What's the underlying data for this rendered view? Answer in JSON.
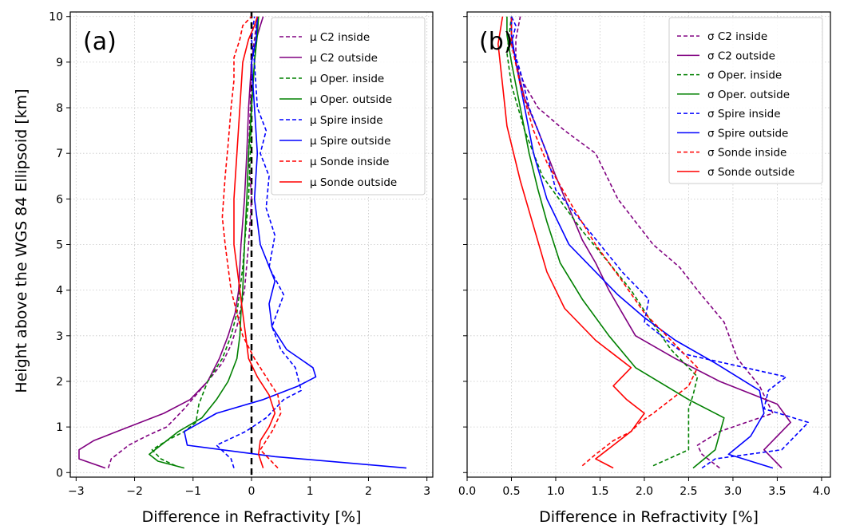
{
  "ylabel": "Height above the WGS 84 Ellipsoid  [km]",
  "legend_labels": {
    "a": [
      "μ C2 inside",
      "μ C2 outside",
      "μ Oper. inside",
      "μ Oper. outside",
      "μ Spire inside",
      "μ Spire outside",
      "μ Sonde inside",
      "μ Sonde outside"
    ],
    "b": [
      "σ C2 inside",
      "σ C2 outside",
      "σ Oper. inside",
      "σ Oper. outside",
      "σ Spire inside",
      "σ Spire outside",
      "σ Sonde inside",
      "σ Sonde outside"
    ]
  },
  "chart_data": [
    {
      "type": "line",
      "panel_label": "(a)",
      "xlabel": "Difference in Refractivity  [%]",
      "ylabel": "Height above the WGS 84 Ellipsoid  [km]",
      "xlim": [
        -3.1,
        3.1
      ],
      "ylim": [
        -0.1,
        10.1
      ],
      "xticks": [
        -3,
        -2,
        -1,
        0,
        1,
        2,
        3
      ],
      "xtick_labels": [
        "−3",
        "−2",
        "−1",
        "0",
        "1",
        "2",
        "3"
      ],
      "yticks": [
        0,
        1,
        2,
        3,
        4,
        5,
        6,
        7,
        8,
        9,
        10
      ],
      "grid": true,
      "legend_position": "top-right",
      "reference_line": {
        "x": 0,
        "style": "dashed",
        "color": "#000000"
      },
      "series": [
        {
          "name": "μ C2 inside",
          "color": "#800080",
          "style": "dashed",
          "x": [
            -2.45,
            -2.4,
            -2.1,
            -1.8,
            -1.45,
            -1.15,
            -0.95,
            -0.75,
            -0.5,
            -0.35,
            -0.25,
            -0.12,
            -0.05,
            0.0,
            -0.05,
            -0.02,
            0.0,
            0.05,
            0.1
          ],
          "y": [
            0.1,
            0.3,
            0.6,
            0.8,
            1.0,
            1.4,
            1.7,
            2.0,
            2.4,
            2.8,
            3.2,
            4.0,
            5.0,
            6.0,
            7.0,
            8.0,
            9.0,
            9.5,
            10.0
          ]
        },
        {
          "name": "μ C2 outside",
          "color": "#800080",
          "style": "solid",
          "x": [
            -2.5,
            -2.95,
            -2.95,
            -2.7,
            -2.3,
            -1.9,
            -1.5,
            -1.05,
            -0.75,
            -0.55,
            -0.4,
            -0.28,
            -0.22,
            -0.18,
            -0.12,
            -0.08,
            -0.05,
            0.0,
            0.08,
            0.15,
            0.2
          ],
          "y": [
            0.1,
            0.3,
            0.5,
            0.7,
            0.9,
            1.1,
            1.3,
            1.6,
            2.0,
            2.5,
            3.0,
            3.5,
            4.0,
            5.0,
            6.0,
            7.0,
            8.0,
            9.0,
            9.5,
            9.8,
            10.0
          ]
        },
        {
          "name": "μ Oper. inside",
          "color": "#008000",
          "style": "dashed",
          "x": [
            -1.3,
            -1.55,
            -1.7,
            -1.45,
            -1.15,
            -0.95,
            -0.9,
            -0.75,
            -0.5,
            -0.35,
            -0.25,
            -0.2,
            -0.15,
            -0.12,
            -0.05,
            -0.02,
            0.0,
            0.05,
            0.1
          ],
          "y": [
            0.15,
            0.3,
            0.5,
            0.7,
            0.9,
            1.1,
            1.5,
            2.0,
            2.5,
            3.0,
            3.5,
            4.0,
            4.5,
            5.0,
            6.0,
            7.0,
            8.0,
            9.0,
            10.0
          ]
        },
        {
          "name": "μ Oper. outside",
          "color": "#008000",
          "style": "solid",
          "x": [
            -1.15,
            -1.6,
            -1.75,
            -1.55,
            -1.25,
            -0.85,
            -0.6,
            -0.4,
            -0.25,
            -0.2,
            -0.18,
            -0.15,
            -0.12,
            -0.08,
            -0.05,
            0.0,
            0.05,
            0.1,
            0.12
          ],
          "y": [
            0.1,
            0.25,
            0.4,
            0.6,
            0.9,
            1.2,
            1.6,
            2.0,
            2.5,
            3.0,
            3.5,
            4.0,
            5.0,
            6.0,
            7.0,
            8.0,
            9.0,
            9.6,
            10.0
          ]
        },
        {
          "name": "μ Spire inside",
          "color": "#0000ff",
          "style": "dashed",
          "x": [
            -0.3,
            -0.35,
            -0.6,
            -0.1,
            0.25,
            0.55,
            0.85,
            0.75,
            0.5,
            0.35,
            0.55,
            0.3,
            0.4,
            0.25,
            0.3,
            0.15,
            0.25,
            0.1,
            0.05,
            0.0,
            0.05
          ],
          "y": [
            0.1,
            0.3,
            0.6,
            0.9,
            1.2,
            1.6,
            1.8,
            2.3,
            2.7,
            3.2,
            3.9,
            4.5,
            5.2,
            5.8,
            6.5,
            7.0,
            7.5,
            8.0,
            9.0,
            9.5,
            10.0
          ]
        },
        {
          "name": "μ Spire outside",
          "color": "#0000ff",
          "style": "solid",
          "x": [
            2.65,
            0.4,
            -1.1,
            -1.15,
            -0.6,
            0.2,
            0.8,
            1.1,
            1.05,
            0.6,
            0.35,
            0.3,
            0.4,
            0.15,
            0.05,
            0.1,
            0.05,
            0.0,
            0.08,
            0.1
          ],
          "y": [
            0.1,
            0.35,
            0.6,
            0.9,
            1.3,
            1.6,
            1.9,
            2.1,
            2.3,
            2.7,
            3.2,
            3.7,
            4.2,
            5.0,
            6.0,
            7.0,
            8.0,
            9.0,
            9.5,
            10.0
          ]
        },
        {
          "name": "μ Sonde inside",
          "color": "#ff0000",
          "style": "dashed",
          "x": [
            0.45,
            0.3,
            0.15,
            0.35,
            0.5,
            0.45,
            0.25,
            0.05,
            -0.15,
            -0.25,
            -0.35,
            -0.45,
            -0.5,
            -0.45,
            -0.4,
            -0.35,
            -0.3,
            -0.3,
            -0.2,
            -0.15,
            0.0
          ],
          "y": [
            0.1,
            0.3,
            0.5,
            0.9,
            1.3,
            1.7,
            2.1,
            2.5,
            3.0,
            3.5,
            4.0,
            5.0,
            5.6,
            6.5,
            7.2,
            8.0,
            8.6,
            9.1,
            9.5,
            9.8,
            10.0
          ]
        },
        {
          "name": "μ Sonde outside",
          "color": "#ff0000",
          "style": "solid",
          "x": [
            0.2,
            0.12,
            0.15,
            0.3,
            0.4,
            0.3,
            0.1,
            -0.05,
            -0.1,
            -0.15,
            -0.2,
            -0.25,
            -0.3,
            -0.3,
            -0.25,
            -0.2,
            -0.15,
            -0.05,
            0.05,
            0.1
          ],
          "y": [
            0.1,
            0.4,
            0.7,
            1.0,
            1.3,
            1.7,
            2.1,
            2.5,
            3.0,
            3.5,
            4.0,
            4.5,
            5.0,
            6.0,
            7.0,
            8.0,
            9.0,
            9.5,
            9.8,
            10.0
          ]
        }
      ]
    },
    {
      "type": "line",
      "panel_label": "(b)",
      "xlabel": "Difference in Refractivity  [%]",
      "xlim": [
        0.0,
        4.1
      ],
      "ylim": [
        -0.1,
        10.1
      ],
      "xticks": [
        0.0,
        0.5,
        1.0,
        1.5,
        2.0,
        2.5,
        3.0,
        3.5,
        4.0
      ],
      "xtick_labels": [
        "0.0",
        "0.5",
        "1.0",
        "1.5",
        "2.0",
        "2.5",
        "3.0",
        "3.5",
        "4.0"
      ],
      "yticks": [
        0,
        1,
        2,
        3,
        4,
        5,
        6,
        7,
        8,
        9,
        10
      ],
      "grid": true,
      "legend_position": "top-right",
      "series": [
        {
          "name": "σ C2 inside",
          "color": "#800080",
          "style": "dashed",
          "x": [
            2.85,
            2.65,
            2.6,
            2.85,
            3.15,
            3.45,
            3.3,
            3.05,
            2.9,
            2.6,
            2.4,
            2.1,
            1.7,
            1.45,
            1.1,
            0.8,
            0.65,
            0.55,
            0.55,
            0.6
          ],
          "y": [
            0.1,
            0.4,
            0.6,
            0.9,
            1.1,
            1.3,
            1.9,
            2.5,
            3.3,
            4.0,
            4.5,
            5.0,
            6.0,
            7.0,
            7.5,
            8.0,
            8.5,
            9.0,
            9.5,
            10.0
          ]
        },
        {
          "name": "σ C2 outside",
          "color": "#800080",
          "style": "solid",
          "x": [
            3.55,
            3.35,
            3.65,
            3.5,
            2.85,
            2.35,
            1.9,
            1.75,
            1.6,
            1.45,
            1.3,
            1.0,
            0.8,
            0.65,
            0.55,
            0.5,
            0.5
          ],
          "y": [
            0.1,
            0.5,
            1.1,
            1.5,
            2.0,
            2.5,
            3.0,
            3.5,
            4.0,
            4.6,
            5.1,
            6.5,
            7.5,
            8.2,
            9.0,
            9.6,
            10.0
          ]
        },
        {
          "name": "σ Oper. inside",
          "color": "#008000",
          "style": "dashed",
          "x": [
            2.1,
            2.5,
            2.5,
            2.5,
            2.55,
            2.6,
            2.3,
            2.05,
            1.85,
            1.6,
            1.3,
            0.85,
            0.65,
            0.5,
            0.45,
            0.5
          ],
          "y": [
            0.15,
            0.5,
            1.0,
            1.4,
            1.7,
            2.1,
            2.7,
            3.4,
            4.0,
            4.6,
            5.3,
            6.5,
            7.5,
            8.5,
            9.2,
            10.0
          ]
        },
        {
          "name": "σ Oper. outside",
          "color": "#008000",
          "style": "solid",
          "x": [
            2.55,
            2.8,
            2.9,
            2.5,
            1.9,
            1.6,
            1.3,
            1.05,
            0.9,
            0.8,
            0.7,
            0.6,
            0.5,
            0.45,
            0.45
          ],
          "y": [
            0.1,
            0.5,
            1.2,
            1.6,
            2.3,
            3.0,
            3.8,
            4.6,
            5.5,
            6.2,
            7.0,
            8.0,
            9.0,
            9.6,
            10.0
          ]
        },
        {
          "name": "σ Spire inside",
          "color": "#0000ff",
          "style": "dashed",
          "x": [
            2.65,
            2.8,
            3.55,
            3.85,
            3.35,
            3.4,
            3.6,
            2.45,
            2.0,
            2.05,
            1.75,
            1.5,
            1.0,
            0.9,
            0.7,
            0.6,
            0.5,
            0.55,
            0.5
          ],
          "y": [
            0.1,
            0.3,
            0.5,
            1.1,
            1.4,
            1.8,
            2.1,
            2.6,
            3.3,
            3.8,
            4.4,
            5.0,
            6.2,
            7.0,
            8.0,
            8.8,
            9.4,
            9.8,
            10.0
          ]
        },
        {
          "name": "σ Spire outside",
          "color": "#0000ff",
          "style": "solid",
          "x": [
            3.45,
            2.95,
            3.2,
            3.35,
            3.3,
            2.8,
            2.35,
            2.0,
            1.7,
            1.4,
            1.15,
            0.9,
            0.75,
            0.65,
            0.55,
            0.5,
            0.5
          ],
          "y": [
            0.1,
            0.4,
            0.8,
            1.3,
            1.8,
            2.4,
            2.9,
            3.4,
            3.9,
            4.5,
            5.0,
            6.0,
            7.0,
            8.0,
            9.0,
            9.6,
            10.0
          ]
        },
        {
          "name": "σ Sonde inside",
          "color": "#ff0000",
          "style": "dashed",
          "x": [
            1.3,
            1.45,
            1.65,
            1.85,
            1.95,
            2.1,
            2.3,
            2.5,
            2.6,
            2.35,
            2.0,
            1.75,
            1.45,
            1.2,
            0.9,
            0.75,
            0.6,
            0.5,
            0.5
          ],
          "y": [
            0.15,
            0.4,
            0.7,
            0.9,
            1.1,
            1.3,
            1.6,
            1.9,
            2.3,
            2.8,
            3.5,
            4.2,
            5.0,
            5.8,
            6.8,
            7.5,
            8.5,
            9.4,
            10.0
          ]
        },
        {
          "name": "σ Sonde outside",
          "color": "#ff0000",
          "style": "solid",
          "x": [
            1.65,
            1.45,
            1.65,
            1.85,
            2.0,
            1.8,
            1.65,
            1.85,
            1.45,
            1.1,
            0.9,
            0.75,
            0.6,
            0.45,
            0.4,
            0.35,
            0.4
          ],
          "y": [
            0.1,
            0.3,
            0.6,
            0.9,
            1.3,
            1.6,
            1.9,
            2.3,
            2.9,
            3.6,
            4.4,
            5.4,
            6.4,
            7.6,
            8.5,
            9.4,
            10.0
          ]
        }
      ]
    }
  ]
}
